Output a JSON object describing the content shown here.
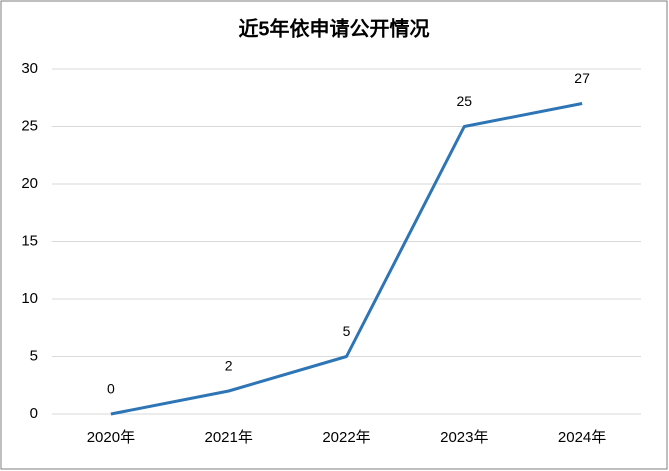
{
  "chart_data": {
    "type": "line",
    "title": "近5年依申请公开情况",
    "categories": [
      "2020年",
      "2021年",
      "2022年",
      "2023年",
      "2024年"
    ],
    "values": [
      0,
      2,
      5,
      25,
      27
    ],
    "color": "#2e75b6",
    "ylim": [
      0,
      30
    ],
    "yticks": [
      0,
      5,
      10,
      15,
      20,
      25,
      30
    ],
    "grid": true
  }
}
